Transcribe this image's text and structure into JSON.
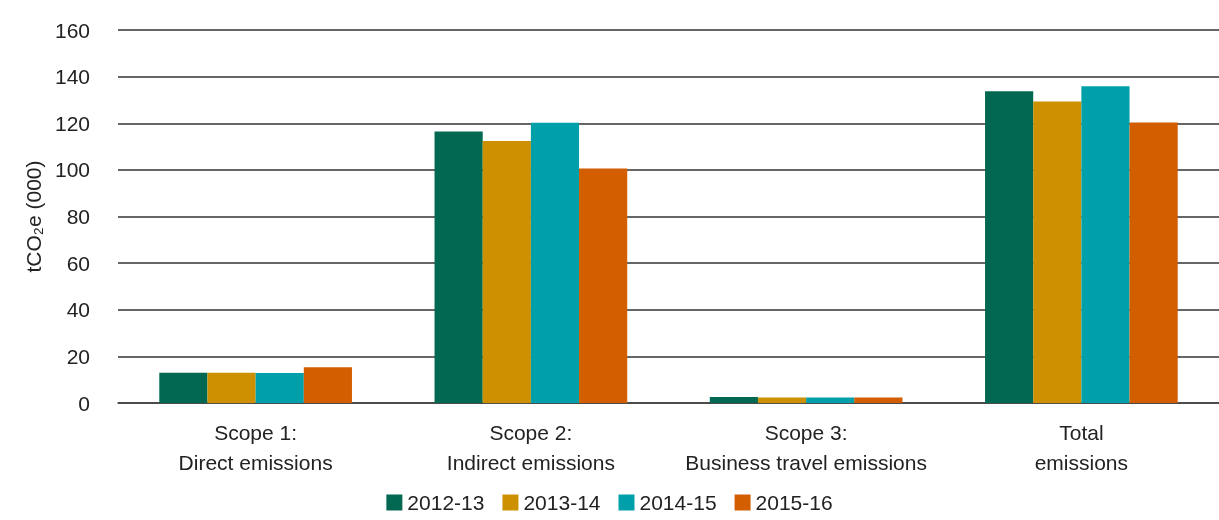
{
  "chart_data": {
    "type": "bar",
    "ylabel": "tCO₂e (000)",
    "categories": [
      "Scope 1:\nDirect emissions",
      "Scope 2:\nIndirect emissions",
      "Scope 3:\nBusiness travel emissions",
      "Total\nemissions"
    ],
    "series": [
      {
        "name": "2012-13",
        "color": "#026851",
        "values": [
          13,
          116.5,
          2.6,
          133.7
        ]
      },
      {
        "name": "2013-14",
        "color": "#cc9000",
        "values": [
          13,
          112.4,
          2.4,
          129.3
        ]
      },
      {
        "name": "2014-15",
        "color": "#00a0ab",
        "values": [
          12.9,
          120.2,
          2.4,
          135.9
        ]
      },
      {
        "name": "2015-16",
        "color": "#d35e00",
        "values": [
          15.3,
          100.6,
          2.4,
          120.3
        ]
      }
    ],
    "ylim": [
      0,
      160
    ],
    "yticks": [
      0,
      20,
      40,
      60,
      80,
      100,
      120,
      140,
      160
    ],
    "grid": "y",
    "legend": "bottom"
  }
}
